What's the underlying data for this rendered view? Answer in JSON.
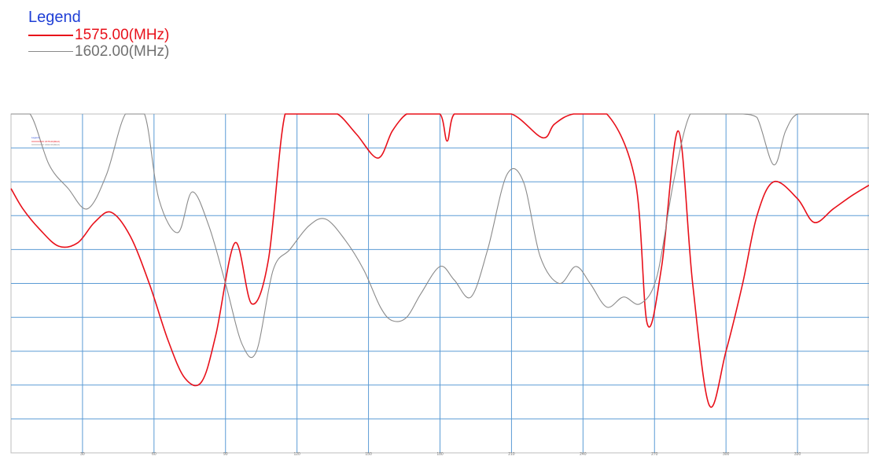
{
  "legend": {
    "title": "Legend",
    "entries": [
      {
        "label": "1575.00(MHz)",
        "color": "#e8101a"
      },
      {
        "label": "1602.00(MHz)",
        "color": "#8a8a8a"
      }
    ]
  },
  "chart_data": {
    "type": "line",
    "grid": true,
    "legend_position": "top-left (outside plot)",
    "xlim": [
      0,
      360
    ],
    "x_ticks": [
      30,
      60,
      90,
      120,
      150,
      180,
      210,
      240,
      270,
      300,
      330
    ],
    "ylim": [
      -10,
      0
    ],
    "colors": {
      "grid": "#5b9bd5",
      "frame": "#bcbcbc"
    },
    "series": [
      {
        "name": "1575.00(MHz)",
        "color": "#e8101a",
        "x": [
          0,
          5,
          12,
          20,
          28,
          35,
          42,
          50,
          58,
          66,
          73,
          80,
          86,
          94,
          101,
          108,
          115,
          123,
          130,
          137,
          145,
          154,
          160,
          166,
          172,
          180,
          183,
          186,
          195,
          210,
          223,
          228,
          236,
          250,
          262,
          267,
          273,
          280,
          286,
          293,
          300,
          307,
          313,
          320,
          330,
          337,
          345,
          353,
          360
        ],
        "y": [
          -2.2,
          -2.8,
          -3.4,
          -3.9,
          -3.8,
          -3.2,
          -2.9,
          -3.6,
          -5.0,
          -6.7,
          -7.8,
          -7.9,
          -6.5,
          -3.8,
          -5.6,
          -4.3,
          0.5,
          0.5,
          0.5,
          0.5,
          -0.6,
          -1.3,
          -0.5,
          0.5,
          0.5,
          0.5,
          -0.8,
          0.5,
          0.5,
          0.5,
          -0.7,
          -0.3,
          0.5,
          0.5,
          -2.0,
          -6.2,
          -4.5,
          -0.5,
          -5.0,
          -8.6,
          -7.0,
          -5.0,
          -3.0,
          -2.0,
          -2.5,
          -3.2,
          -2.8,
          -2.4,
          -2.1
        ]
      },
      {
        "name": "1602.00(MHz)",
        "color": "#8a8a8a",
        "x": [
          0,
          8,
          16,
          24,
          32,
          40,
          48,
          56,
          62,
          70,
          76,
          83,
          90,
          97,
          103,
          110,
          117,
          125,
          132,
          140,
          148,
          155,
          160,
          166,
          172,
          180,
          186,
          193,
          200,
          208,
          215,
          222,
          230,
          237,
          243,
          250,
          257,
          264,
          271,
          278,
          285,
          293,
          300,
          307,
          313,
          320,
          325,
          330,
          340,
          350,
          360
        ],
        "y": [
          0.5,
          0.5,
          -1.5,
          -2.2,
          -2.8,
          -1.8,
          0.5,
          0.5,
          -2.5,
          -3.5,
          -2.3,
          -3.3,
          -5.0,
          -6.8,
          -7.0,
          -4.6,
          -4.0,
          -3.3,
          -3.1,
          -3.7,
          -4.6,
          -5.7,
          -6.1,
          -6.0,
          -5.3,
          -4.5,
          -4.9,
          -5.4,
          -4.0,
          -1.8,
          -2.0,
          -4.2,
          -5.0,
          -4.5,
          -5.0,
          -5.7,
          -5.4,
          -5.6,
          -4.8,
          -2.0,
          0.5,
          0.5,
          0.5,
          0.5,
          -0.1,
          -1.5,
          -0.5,
          0.5,
          0.5,
          0.5,
          0.5
        ]
      }
    ],
    "mini_legend": {
      "title": "Legend",
      "entries": [
        "1575.00(MHz)",
        "1602.00(MHz)"
      ]
    }
  }
}
